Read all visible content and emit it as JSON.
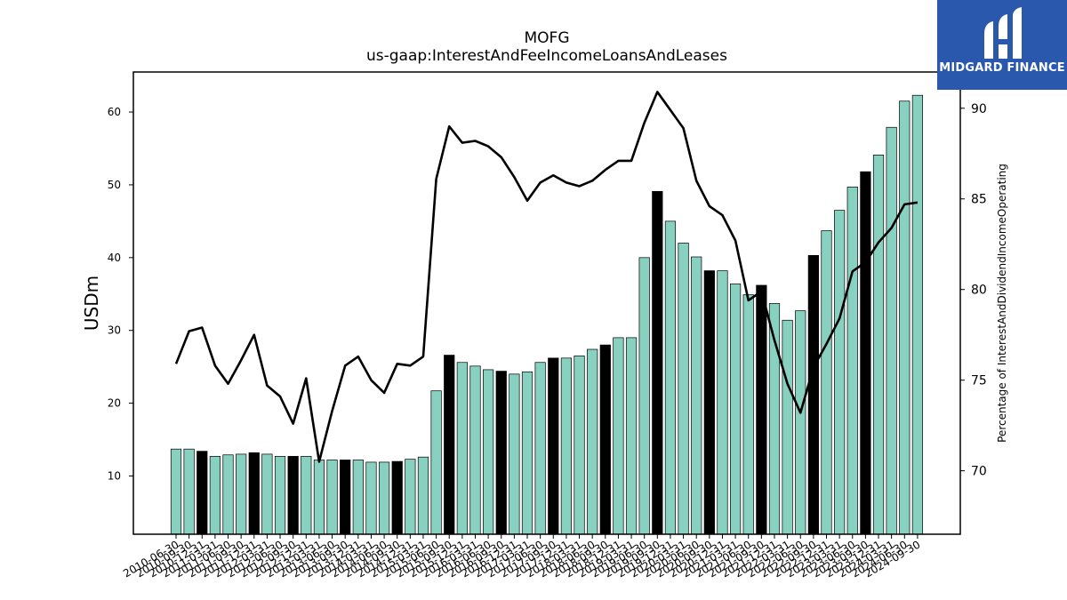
{
  "chart_data": {
    "type": "bar",
    "title": "MOFG",
    "subtitle": "us-gaap:InterestAndFeeIncomeLoansAndLeases",
    "ylabel": "USDm",
    "y2label": "Percentage of InterestAndDividendIncomeOperating",
    "ylim": [
      2,
      65.5
    ],
    "y2lim": [
      66.5,
      92
    ],
    "yticks": [
      10,
      20,
      30,
      40,
      50,
      60
    ],
    "y2ticks": [
      70,
      75,
      80,
      85,
      90
    ],
    "grid": false,
    "categories": [
      "2010-06-30",
      "2010-09-30",
      "2010-12-31",
      "2011-03-31",
      "2011-06-30",
      "2011-09-30",
      "2011-12-31",
      "2012-03-31",
      "2012-06-30",
      "2012-09-30",
      "2012-12-31",
      "2013-03-31",
      "2013-06-30",
      "2013-09-30",
      "2013-12-31",
      "2014-03-31",
      "2014-06-30",
      "2014-09-30",
      "2014-12-31",
      "2015-03-31",
      "2015-06-30",
      "2015-09-30",
      "2015-12-31",
      "2016-03-31",
      "2016-06-30",
      "2016-09-30",
      "2016-12-31",
      "2017-03-31",
      "2017-06-30",
      "2017-09-30",
      "2017-12-31",
      "2018-03-31",
      "2018-06-30",
      "2018-09-30",
      "2018-12-31",
      "2019-03-31",
      "2019-06-30",
      "2019-09-30",
      "2019-12-31",
      "2020-03-31",
      "2020-06-30",
      "2020-09-30",
      "2020-12-31",
      "2021-03-31",
      "2021-06-30",
      "2021-09-30",
      "2021-12-31",
      "2022-03-31",
      "2022-06-30",
      "2022-09-30",
      "2022-12-31",
      "2023-03-31",
      "2023-06-30",
      "2023-09-30",
      "2023-12-31",
      "2024-03-31",
      "2024-06-30",
      "2024-09-30"
    ],
    "x_tick_labels": [
      "2010-06-30",
      "2010-09-30",
      "2010-12-31",
      "2011-03-31",
      "2011-06-30",
      "2011-09-30",
      "2011-12-31",
      "2012-03-31",
      "2012-06-30",
      "2012-09-30",
      "2012-12-31",
      "2013-03-31",
      "2013-06-30",
      "2013-09-30",
      "2013-12-31",
      "2014-03-31",
      "2014-06-30",
      "2014-09-30",
      "2014-12-31",
      "2015-03-31",
      "2015-06-30",
      "2015-09-30",
      "2015-12-31",
      "2016-03-31",
      "2016-06-30",
      "2016-09-30",
      "2016-12-31",
      "2017-03-31",
      "2017-06-30",
      "2017-09-30",
      "2017-12-31",
      "2018-03-31",
      "2018-06-30",
      "2018-09-30",
      "2018-12-31",
      "2019-03-31",
      "2019-06-30",
      "2019-09-30",
      "2019-12-31",
      "2020-03-31",
      "2020-06-30",
      "2020-09-30",
      "2020-12-31",
      "2021-03-31",
      "2021-06-30",
      "2021-09-30",
      "2021-12-31",
      "2022-03-31",
      "2022-06-30",
      "2022-09-30",
      "2022-12-31",
      "2023-03-31",
      "2023-06-30",
      "2023-09-30",
      "2023-12-31",
      "2024-03-31",
      "2024-06-30",
      "2024-09-30"
    ],
    "series": [
      {
        "kind": "bar",
        "axis": "left",
        "values": [
          13.7,
          13.7,
          13.4,
          12.7,
          12.9,
          13.0,
          13.2,
          13.0,
          12.7,
          12.7,
          12.7,
          12.2,
          12.2,
          12.2,
          12.2,
          11.9,
          11.9,
          12.0,
          12.3,
          12.6,
          21.7,
          26.6,
          25.6,
          25.1,
          24.6,
          24.4,
          24.0,
          24.3,
          25.6,
          26.2,
          26.2,
          26.5,
          27.4,
          28.0,
          29.0,
          29.0,
          40.0,
          49.1,
          45.0,
          42.0,
          40.1,
          38.2,
          38.2,
          36.4,
          34.9,
          36.2,
          33.7,
          31.4,
          32.7,
          40.3,
          43.7,
          46.5,
          49.7,
          51.8,
          54.1,
          57.9,
          61.5,
          62.3
        ],
        "highlight": [
          false,
          false,
          true,
          false,
          false,
          false,
          true,
          false,
          false,
          true,
          false,
          false,
          false,
          true,
          false,
          false,
          false,
          true,
          false,
          false,
          false,
          true,
          false,
          false,
          false,
          true,
          false,
          false,
          false,
          true,
          false,
          false,
          false,
          true,
          false,
          false,
          false,
          true,
          false,
          false,
          false,
          true,
          false,
          false,
          false,
          true,
          false,
          false,
          false,
          true,
          false,
          false,
          false,
          true,
          false,
          false,
          false,
          false
        ]
      },
      {
        "kind": "line",
        "axis": "right",
        "values": [
          75.9,
          77.7,
          77.9,
          75.8,
          74.8,
          76.1,
          77.5,
          74.7,
          74.1,
          72.6,
          75.1,
          70.5,
          73.3,
          75.8,
          76.3,
          75.0,
          74.3,
          75.9,
          75.8,
          76.3,
          86.1,
          89.0,
          88.1,
          88.2,
          87.9,
          87.3,
          86.2,
          84.9,
          85.9,
          86.3,
          85.9,
          85.7,
          86.0,
          86.6,
          87.1,
          87.1,
          89.2,
          90.9,
          89.9,
          88.9,
          86.0,
          84.6,
          84.1,
          82.7,
          79.4,
          79.9,
          77.2,
          74.8,
          73.2,
          75.7,
          77.0,
          78.4,
          81.0,
          81.5,
          82.6,
          83.4,
          84.7,
          84.8
        ]
      }
    ],
    "colors": {
      "bar": "#88d0bf",
      "bar_highlight": "#000000",
      "bar_edge": "#000000",
      "line": "#000000"
    }
  },
  "logo": {
    "text": "MIDGARD FINANCE",
    "bg": "#2a58ad"
  }
}
